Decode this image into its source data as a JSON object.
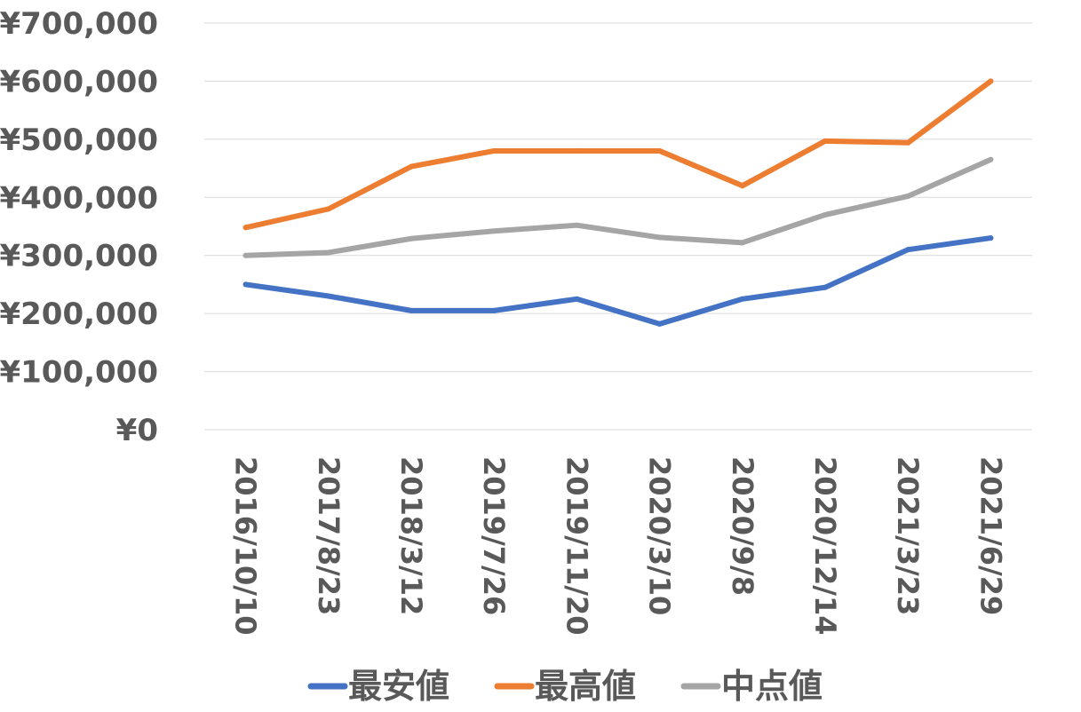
{
  "chart_data": {
    "type": "line",
    "categories": [
      "2016/10/10",
      "2017/8/23",
      "2018/3/12",
      "2019/7/26",
      "2019/11/20",
      "2020/3/10",
      "2020/9/8",
      "2020/12/14",
      "2021/3/23",
      "2021/6/29"
    ],
    "series": [
      {
        "name": "最安値",
        "color": "#4472C4",
        "values": [
          250000,
          230000,
          205000,
          205000,
          225000,
          182000,
          225000,
          245000,
          310000,
          330000
        ]
      },
      {
        "name": "最高値",
        "color": "#ED7D31",
        "values": [
          348000,
          380000,
          453000,
          480000,
          480000,
          480000,
          420000,
          497000,
          494000,
          600000
        ]
      },
      {
        "name": "中点値",
        "color": "#A5A5A5",
        "values": [
          300000,
          305000,
          329000,
          342000,
          352000,
          331000,
          322000,
          370000,
          402000,
          465000
        ]
      }
    ],
    "y_ticks": [
      "¥0",
      "¥100,000",
      "¥200,000",
      "¥300,000",
      "¥400,000",
      "¥500,000",
      "¥600,000",
      "¥700,000"
    ],
    "ylim": [
      0,
      700000
    ],
    "grid": true,
    "legend_position": "bottom",
    "title": "",
    "xlabel": "",
    "ylabel": ""
  }
}
